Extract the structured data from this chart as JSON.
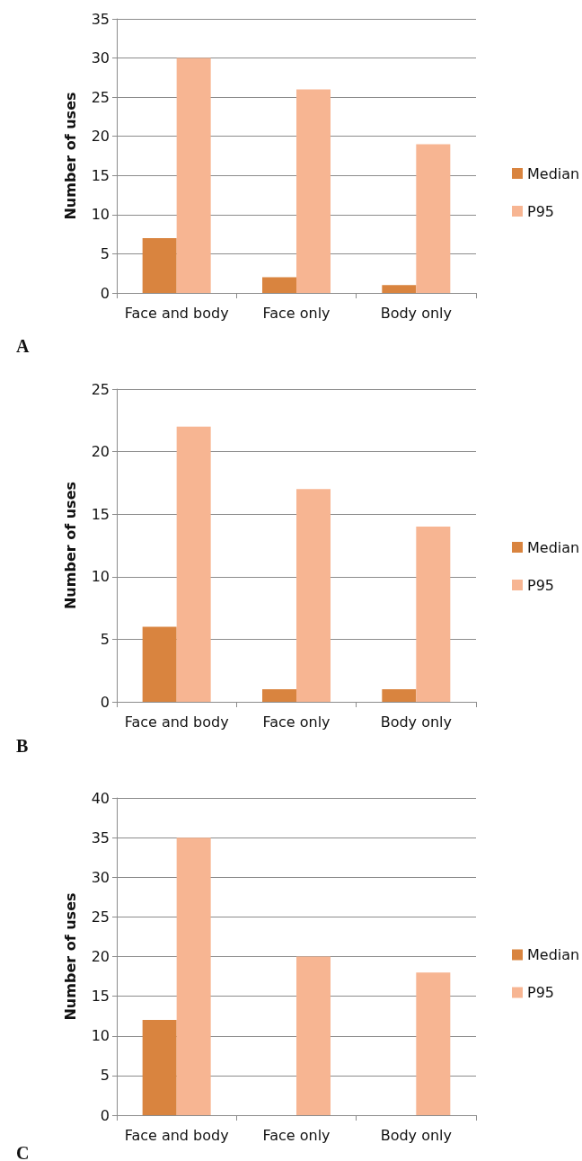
{
  "chart_data": [
    {
      "type": "bar",
      "ylabel": "Number of uses",
      "annotations": [
        "A"
      ],
      "categories": [
        "Face and body",
        "Face only",
        "Body only"
      ],
      "series": [
        {
          "name": "Median",
          "color": "#d9843f",
          "values": [
            7,
            2,
            1
          ]
        },
        {
          "name": "P95",
          "color": "#f7b592",
          "values": [
            30,
            26,
            19
          ]
        }
      ],
      "ylim": [
        0,
        35
      ],
      "yticks": [
        0,
        5,
        10,
        15,
        20,
        25,
        30,
        35
      ],
      "grid": "y",
      "legend": "right"
    },
    {
      "type": "bar",
      "ylabel": "Number of uses",
      "annotations": [
        "B"
      ],
      "categories": [
        "Face and body",
        "Face only",
        "Body only"
      ],
      "series": [
        {
          "name": "Median",
          "color": "#d9843f",
          "values": [
            6,
            1,
            1
          ]
        },
        {
          "name": "P95",
          "color": "#f7b592",
          "values": [
            22,
            17,
            14
          ]
        }
      ],
      "ylim": [
        0,
        25
      ],
      "yticks": [
        0,
        5,
        10,
        15,
        20,
        25
      ],
      "grid": "y",
      "legend": "right"
    },
    {
      "type": "bar",
      "ylabel": "Number of uses",
      "annotations": [
        "C"
      ],
      "categories": [
        "Face and body",
        "Face only",
        "Body only"
      ],
      "series": [
        {
          "name": "Median",
          "color": "#d9843f",
          "values": [
            12,
            0,
            0
          ]
        },
        {
          "name": "P95",
          "color": "#f7b592",
          "values": [
            35,
            20,
            18
          ]
        }
      ],
      "ylim": [
        0,
        40
      ],
      "yticks": [
        0,
        5,
        10,
        15,
        20,
        25,
        30,
        35,
        40
      ],
      "grid": "y",
      "legend": "right"
    }
  ]
}
